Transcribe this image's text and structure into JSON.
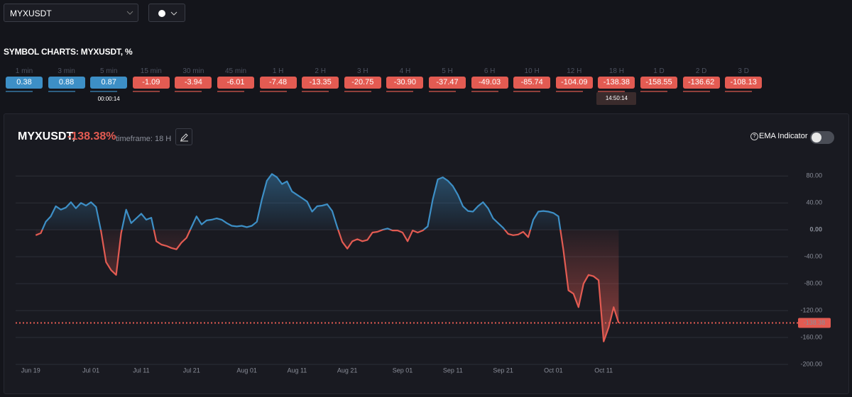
{
  "toolbar": {
    "symbol": "MYXUSDT"
  },
  "section_title": "SYMBOL CHARTS: MYXUSDT, %",
  "up_color": "#3d8fc6",
  "down_color": "#e35b52",
  "timeframes": [
    {
      "label": "1 min",
      "value": "0.38"
    },
    {
      "label": "3 min",
      "value": "0.88"
    },
    {
      "label": "5 min",
      "value": "0.87",
      "timer": "00:00:14"
    },
    {
      "label": "15 min",
      "value": "-1.09"
    },
    {
      "label": "30 min",
      "value": "-3.94"
    },
    {
      "label": "45 min",
      "value": "-6.01"
    },
    {
      "label": "1 H",
      "value": "-7.48"
    },
    {
      "label": "2 H",
      "value": "-13.35"
    },
    {
      "label": "3 H",
      "value": "-20.75"
    },
    {
      "label": "4 H",
      "value": "-30.90"
    },
    {
      "label": "5 H",
      "value": "-37.47"
    },
    {
      "label": "6 H",
      "value": "-49.03"
    },
    {
      "label": "10 H",
      "value": "-85.74"
    },
    {
      "label": "12 H",
      "value": "-104.09"
    },
    {
      "label": "18 H",
      "value": "-138.38",
      "timer": "14:50:14"
    },
    {
      "label": "1 D",
      "value": "-158.55"
    },
    {
      "label": "2 D",
      "value": "-136.62"
    },
    {
      "label": "3 D",
      "value": "-108.13"
    }
  ],
  "chart_panel": {
    "symbol": "MYXUSDT,",
    "change": "-138.38%",
    "timeframe": "timeframe: 18 H",
    "ema_label": "EMA Indicator"
  },
  "chart_data": {
    "type": "area",
    "x": [
      "Jun 20",
      "Jun 21",
      "Jun 22",
      "Jun 23",
      "Jun 24",
      "Jun 25",
      "Jun 26",
      "Jun 27",
      "Jun 28",
      "Jun 29",
      "Jun 30",
      "Jul 01",
      "Jul 02",
      "Jul 03",
      "Jul 04",
      "Jul 05",
      "Jul 06",
      "Jul 07",
      "Jul 08",
      "Jul 09",
      "Jul 10",
      "Jul 11",
      "Jul 12",
      "Jul 13",
      "Jul 14",
      "Jul 15",
      "Jul 16",
      "Jul 17",
      "Jul 18",
      "Jul 19",
      "Jul 20",
      "Jul 21",
      "Jul 22",
      "Jul 23",
      "Jul 24",
      "Jul 25",
      "Jul 26",
      "Jul 27",
      "Jul 28",
      "Jul 29",
      "Jul 30",
      "Jul 31",
      "Aug 01",
      "Aug 02",
      "Aug 03",
      "Aug 04",
      "Aug 05",
      "Aug 06",
      "Aug 07",
      "Aug 08",
      "Aug 09",
      "Aug 10",
      "Aug 11",
      "Aug 12",
      "Aug 13",
      "Aug 14",
      "Aug 15",
      "Aug 16",
      "Aug 17",
      "Aug 18",
      "Aug 19",
      "Aug 20",
      "Aug 21",
      "Aug 22",
      "Aug 23",
      "Aug 24",
      "Aug 25",
      "Aug 26",
      "Aug 27",
      "Aug 28",
      "Aug 29",
      "Aug 30",
      "Aug 31",
      "Sep 01",
      "Sep 02",
      "Sep 03",
      "Sep 04",
      "Sep 05",
      "Sep 06",
      "Sep 07",
      "Sep 08",
      "Sep 09",
      "Sep 10",
      "Sep 11",
      "Sep 12",
      "Sep 13",
      "Sep 14",
      "Sep 15",
      "Sep 16",
      "Sep 17",
      "Sep 18",
      "Sep 19",
      "Sep 20",
      "Sep 21",
      "Sep 22",
      "Sep 23",
      "Sep 24",
      "Sep 25",
      "Sep 26",
      "Sep 27",
      "Sep 28",
      "Sep 29",
      "Sep 30",
      "Oct 01",
      "Oct 02",
      "Oct 03",
      "Oct 04",
      "Oct 05",
      "Oct 06",
      "Oct 07",
      "Oct 08",
      "Oct 09",
      "Oct 10",
      "Oct 11",
      "Oct 12",
      "Oct 13",
      "Oct 14"
    ],
    "values": [
      -8,
      -5,
      12,
      20,
      35,
      30,
      33,
      41,
      32,
      40,
      36,
      41,
      34,
      -2,
      -48,
      -60,
      -67,
      -5,
      30,
      10,
      17,
      24,
      15,
      18,
      -17,
      -22,
      -24,
      -27,
      -29,
      -19,
      -12,
      4,
      20,
      8,
      14,
      15,
      17,
      15,
      10,
      6,
      5,
      6,
      4,
      6,
      12,
      45,
      73,
      83,
      78,
      68,
      72,
      57,
      52,
      47,
      42,
      27,
      35,
      36,
      38,
      28,
      4,
      -18,
      -28,
      -17,
      -14,
      -17,
      -15,
      -4,
      -3,
      0,
      2,
      -1,
      -1,
      -4,
      -17,
      -1,
      -4,
      -1,
      5,
      45,
      75,
      78,
      73,
      65,
      52,
      35,
      28,
      27,
      35,
      41,
      32,
      17,
      10,
      3,
      -6,
      -8,
      -7,
      -3,
      -11,
      15,
      27,
      28,
      27,
      25,
      20,
      -30,
      -90,
      -95,
      -115,
      -80,
      -67,
      -69,
      -75,
      -166,
      -145,
      -115,
      -138.38
    ],
    "last_value_label": "-138.38",
    "xlim": [
      "Jun 16",
      "Nov 16"
    ],
    "xticks": [
      "Jun 19",
      "Jul 01",
      "Jul 11",
      "Jul 21",
      "Aug 01",
      "Aug 11",
      "Aug 21",
      "Sep 01",
      "Sep 11",
      "Sep 21",
      "Oct 01",
      "Oct 11"
    ],
    "ylim": [
      -200,
      115
    ],
    "yticks": [
      {
        "value": 80,
        "label": "80.00"
      },
      {
        "value": 40,
        "label": "40.00"
      },
      {
        "value": 0,
        "label": "0.00"
      },
      {
        "value": -40,
        "label": "-40.00"
      },
      {
        "value": -80,
        "label": "-80.00"
      },
      {
        "value": -120,
        "label": "-120.00"
      },
      {
        "value": -160,
        "label": "-160.00"
      },
      {
        "value": -200,
        "label": "-200.00"
      }
    ],
    "grid": true
  }
}
